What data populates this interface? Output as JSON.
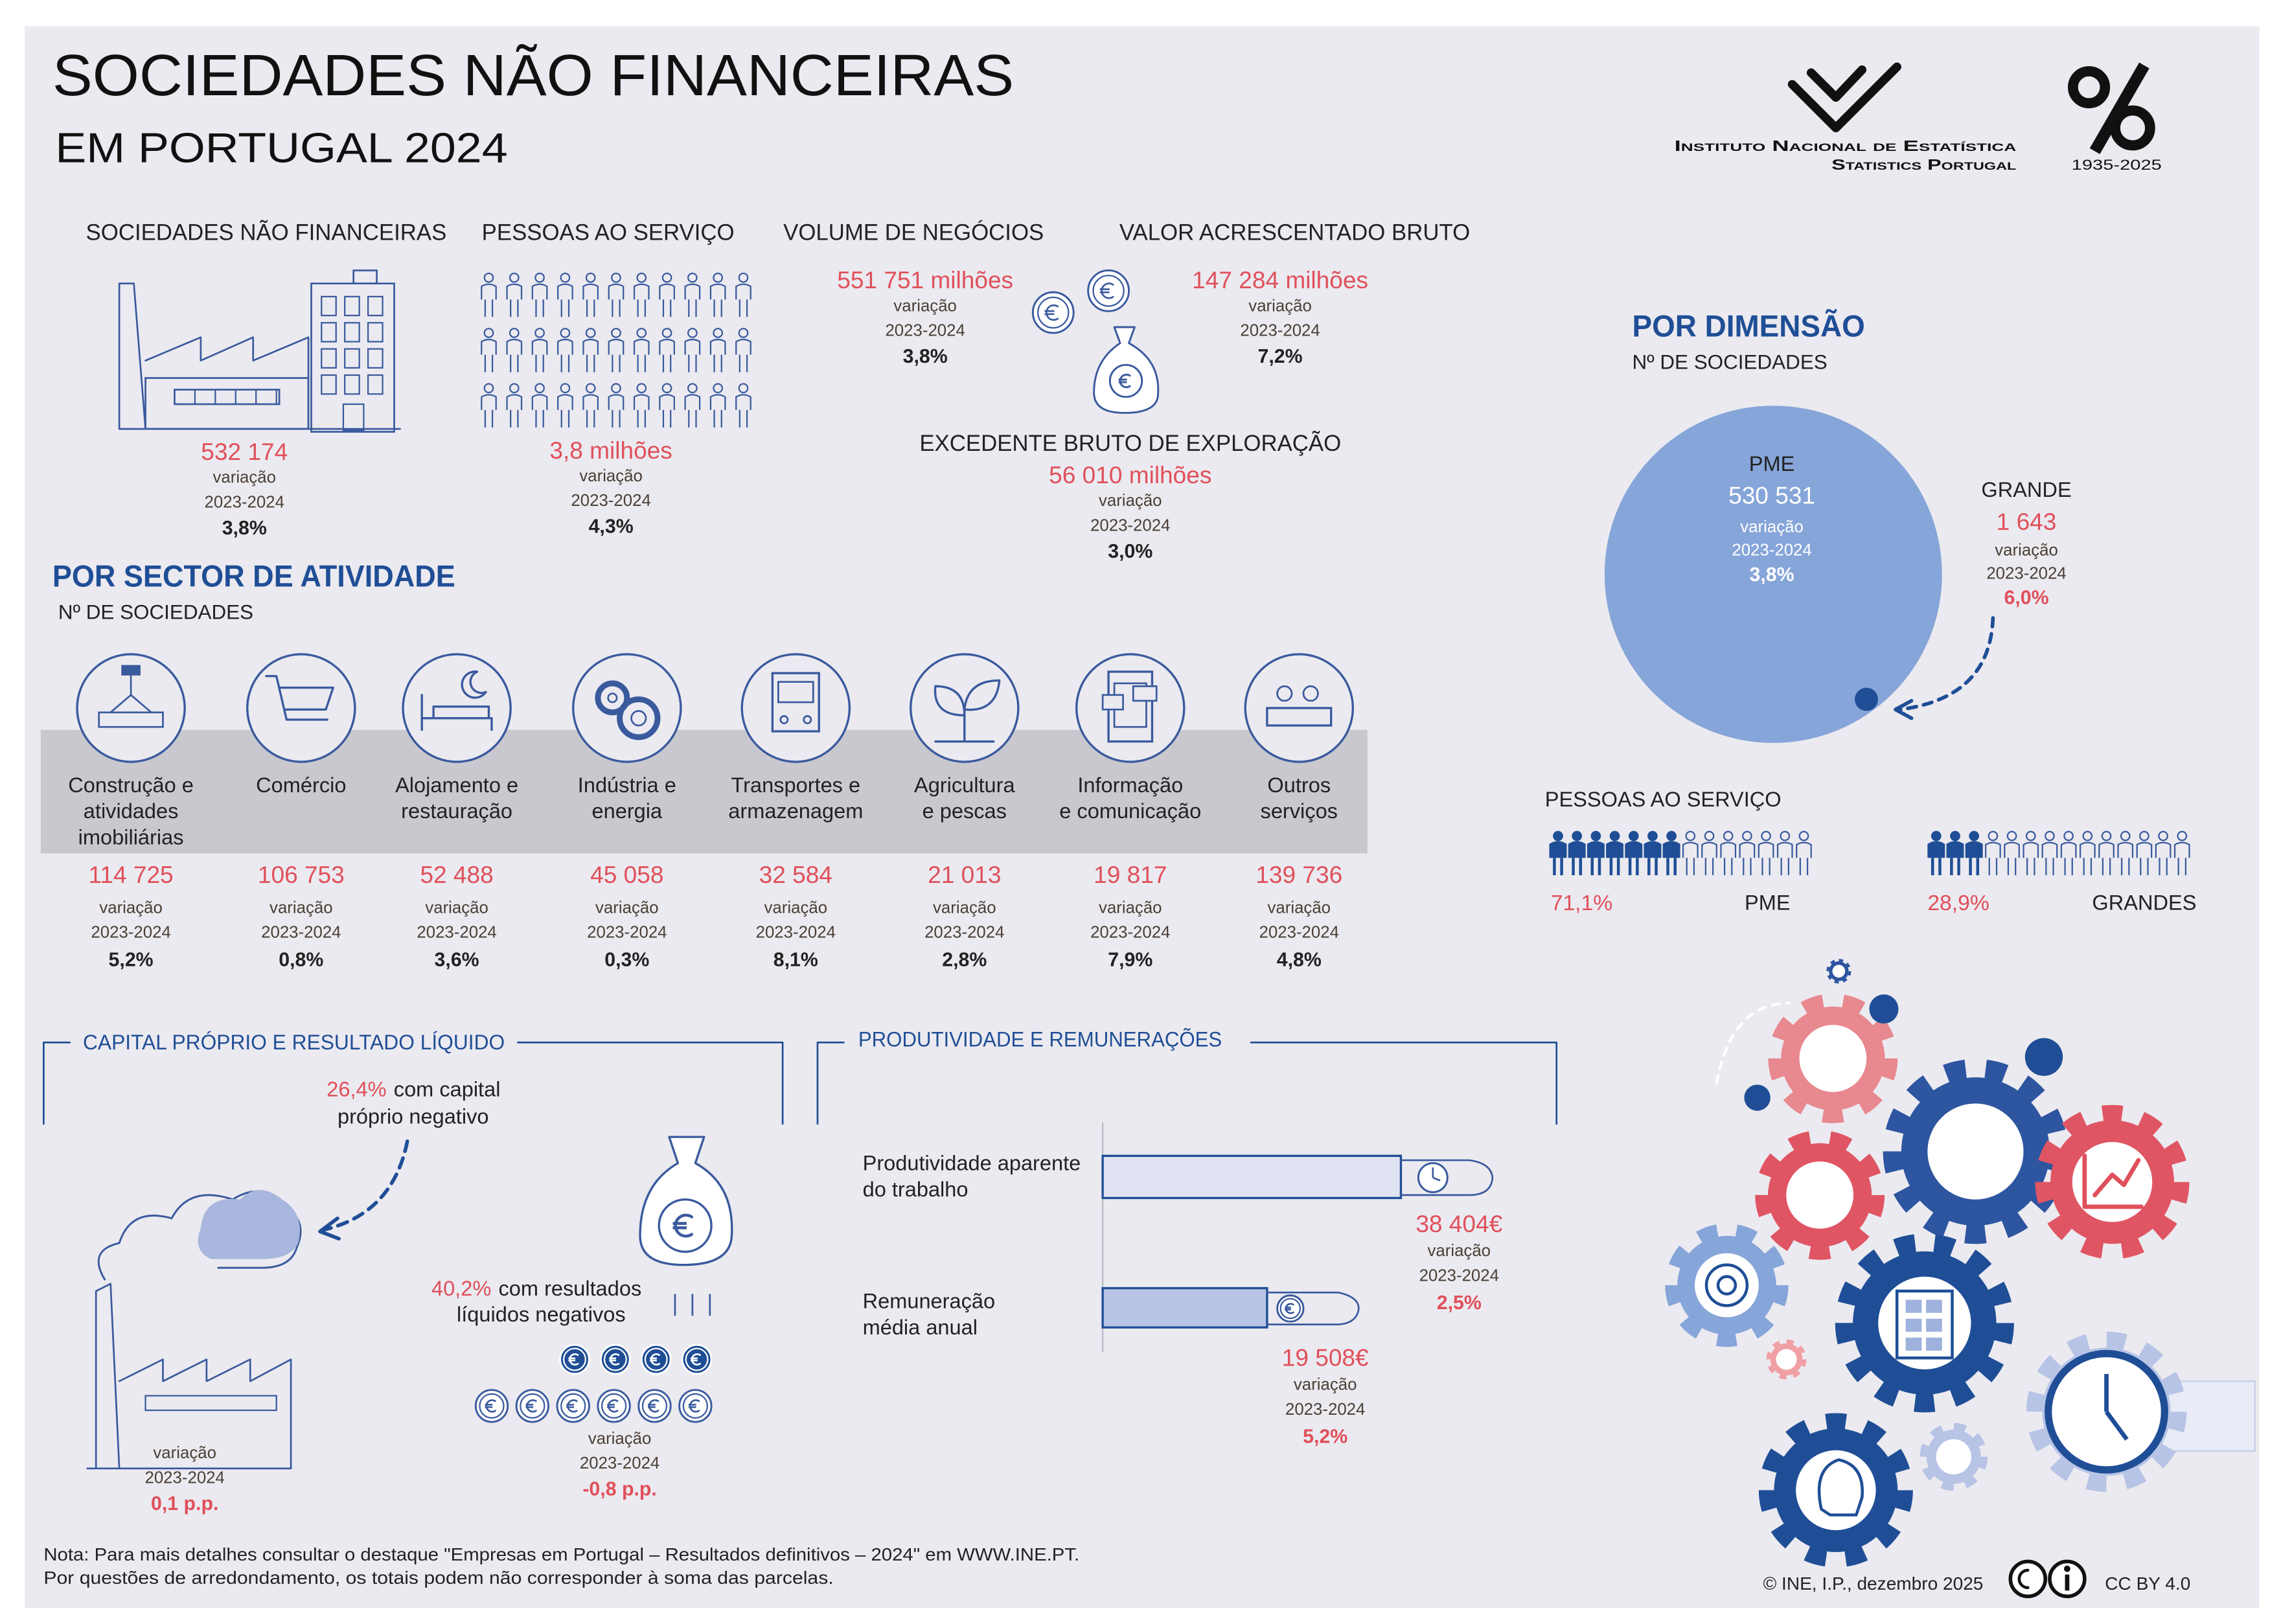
{
  "header": {
    "title": "SOCIEDADES NÃO FINANCEIRAS",
    "subtitle": "EM PORTUGAL 2024"
  },
  "logo": {
    "name": "Instituto Nacional de Estatística",
    "name_en": "Statistics Portugal",
    "years": "1935-2025"
  },
  "kpis": [
    {
      "label": "SOCIEDADES NÃO FINANCEIRAS",
      "value": "532 174",
      "variation_label": "variação",
      "period": "2023-2024",
      "change": "3,8%"
    },
    {
      "label": "PESSOAS AO SERVIÇO",
      "value": "3,8 milhões",
      "variation_label": "variação",
      "period": "2023-2024",
      "change": "4,3%"
    },
    {
      "label": "VOLUME DE NEGÓCIOS",
      "value": "551 751 milhões",
      "variation_label": "variação",
      "period": "2023-2024",
      "change": "3,8%"
    },
    {
      "label": "VALOR ACRESCENTADO BRUTO",
      "value": "147 284 milhões",
      "variation_label": "variação",
      "period": "2023-2024",
      "change": "7,2%"
    },
    {
      "label": "EXCEDENTE BRUTO DE EXPLORAÇÃO",
      "value": "56 010 milhões",
      "variation_label": "variação",
      "period": "2023-2024",
      "change": "3,0%"
    }
  ],
  "by_sector": {
    "title": "POR SECTOR DE ATIVIDADE",
    "subtitle": "Nº DE SOCIEDADES",
    "sectors": [
      {
        "label": [
          "Construção e",
          "atividades",
          "imobiliárias"
        ],
        "value": "114 725",
        "variation_label": "variação",
        "period": "2023-2024",
        "change": "5,2%"
      },
      {
        "label": [
          "Comércio"
        ],
        "value": "106 753",
        "variation_label": "variação",
        "period": "2023-2024",
        "change": "0,8%"
      },
      {
        "label": [
          "Alojamento e",
          "restauração"
        ],
        "value": "52 488",
        "variation_label": "variação",
        "period": "2023-2024",
        "change": "3,6%"
      },
      {
        "label": [
          "Indústria e",
          "energia"
        ],
        "value": "45 058",
        "variation_label": "variação",
        "period": "2023-2024",
        "change": "0,3%"
      },
      {
        "label": [
          "Transportes e",
          "armazenagem"
        ],
        "value": "32 584",
        "variation_label": "variação",
        "period": "2023-2024",
        "change": "8,1%"
      },
      {
        "label": [
          "Agricultura",
          "e pescas"
        ],
        "value": "21 013",
        "variation_label": "variação",
        "period": "2023-2024",
        "change": "2,8%"
      },
      {
        "label": [
          "Informação",
          "e comunicação"
        ],
        "value": "19 817",
        "variation_label": "variação",
        "period": "2023-2024",
        "change": "7,9%"
      },
      {
        "label": [
          "Outros",
          "serviços"
        ],
        "value": "139 736",
        "variation_label": "variação",
        "period": "2023-2024",
        "change": "4,8%"
      }
    ]
  },
  "by_size": {
    "title": "POR DIMENSÃO",
    "subtitle": "Nº DE SOCIEDADES",
    "groups": [
      {
        "label": "PME",
        "value": "530 531",
        "variation_label": "variação",
        "period": "2023-2024",
        "change": "3,8%"
      },
      {
        "label": "GRANDE",
        "value": "1 643",
        "variation_label": "variação",
        "period": "2023-2024",
        "change": "6,0%"
      }
    ]
  },
  "employment": {
    "title": "PESSOAS AO SERVIÇO",
    "groups": [
      {
        "share": "71,1%",
        "label": "PME"
      },
      {
        "share": "28,9%",
        "label": "GRANDES"
      }
    ]
  },
  "equity": {
    "title": "CAPITAL PRÓPRIO E RESULTADO LÍQUIDO",
    "negative_equity": {
      "share": "26,4%",
      "text": [
        "com capital",
        "próprio negativo"
      ],
      "variation_label": "variação",
      "period": "2023-2024",
      "change": "0,1 p.p."
    },
    "negative_results": {
      "share": "40,2%",
      "text": [
        "com resultados",
        "líquidos negativos"
      ],
      "variation_label": "variação",
      "period": "2023-2024",
      "change": "-0,8 p.p."
    }
  },
  "productivity": {
    "title": "PRODUTIVIDADE E REMUNERAÇÕES",
    "items": [
      {
        "label": [
          "Produtividade aparente",
          "do trabalho"
        ],
        "value": "38 404€",
        "variation_label": "variação",
        "period": "2023-2024",
        "change": "2,5%"
      },
      {
        "label": [
          "Remuneração",
          "média anual"
        ],
        "value": "19 508€",
        "variation_label": "variação",
        "period": "2023-2024",
        "change": "5,2%"
      }
    ]
  },
  "footer": {
    "notes": [
      "Nota: Para mais detalhes consultar o destaque \"Empresas em Portugal – Resultados definitivos – 2024\" em WWW.INE.PT.",
      "Por questões de arredondamento, os totais podem não corresponder à soma das parcelas."
    ],
    "copyright": "© INE, I.P., dezembro 2025",
    "license": "CC BY 4.0"
  }
}
